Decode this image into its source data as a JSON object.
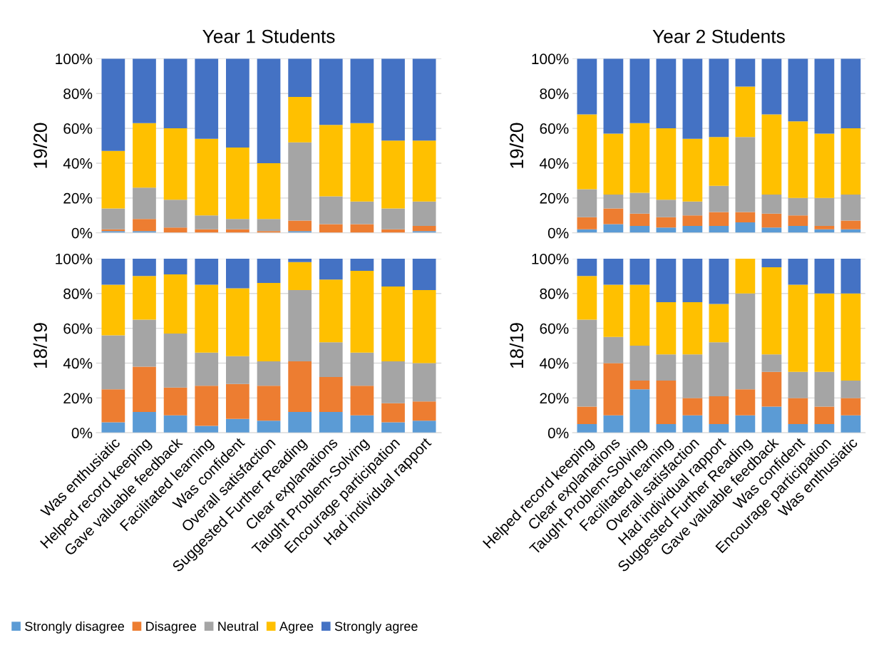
{
  "chart_data": [
    {
      "type": "bar",
      "stacked": true,
      "title": "Year 1 Students",
      "ylabel": "19/20",
      "tick_labels": "y",
      "grid": "y",
      "legend": "bottom",
      "ylim": [
        0,
        100
      ],
      "yticks": [
        {
          "value": 0,
          "label": "0%"
        },
        {
          "value": 20,
          "label": "20%"
        },
        {
          "value": 40,
          "label": "40%"
        },
        {
          "value": 60,
          "label": "60%"
        },
        {
          "value": 80,
          "label": "80%"
        },
        {
          "value": 100,
          "label": "100%"
        }
      ],
      "series": [
        {
          "name": "Strongly disagree",
          "color": "#5b9bd5",
          "values": [
            1,
            1,
            0,
            0,
            0,
            0,
            1,
            0,
            0,
            0,
            1
          ]
        },
        {
          "name": "Disagree",
          "color": "#ed7d31",
          "values": [
            1,
            7,
            3,
            2,
            2,
            1,
            6,
            5,
            5,
            2,
            3
          ]
        },
        {
          "name": "Neutral",
          "color": "#a5a5a5",
          "values": [
            12,
            18,
            16,
            8,
            6,
            7,
            45,
            16,
            13,
            12,
            14
          ]
        },
        {
          "name": "Agree",
          "color": "#ffc000",
          "values": [
            33,
            37,
            41,
            44,
            41,
            32,
            26,
            41,
            45,
            39,
            35
          ]
        },
        {
          "name": "Strongly agree",
          "color": "#4472c4",
          "values": [
            53,
            37,
            40,
            46,
            51,
            60,
            22,
            38,
            37,
            47,
            47
          ]
        }
      ]
    },
    {
      "type": "bar",
      "stacked": true,
      "ylabel": "18/19",
      "grid": "y",
      "categories": [
        "Was enthusiatic",
        "Helped record keeping",
        "Gave valuable feedback",
        "Facilitated learning",
        "Was confident",
        "Overall satisfaction",
        "Suggested Further Reading",
        "Clear explanations",
        "Taught Problem-Solving",
        "Encourage participation",
        "Had individual rapport"
      ],
      "ylim": [
        0,
        100
      ],
      "yticks": [
        {
          "value": 0,
          "label": "0%"
        },
        {
          "value": 20,
          "label": "20%"
        },
        {
          "value": 40,
          "label": "40%"
        },
        {
          "value": 60,
          "label": "60%"
        },
        {
          "value": 80,
          "label": "80%"
        },
        {
          "value": 100,
          "label": "100%"
        }
      ],
      "series": [
        {
          "color": "#5b9bd5",
          "values": [
            6,
            12,
            10,
            4,
            8,
            7,
            12,
            12,
            10,
            6,
            7
          ]
        },
        {
          "color": "#ed7d31",
          "values": [
            19,
            26,
            16,
            23,
            20,
            20,
            29,
            20,
            17,
            11,
            11
          ]
        },
        {
          "color": "#a5a5a5",
          "values": [
            31,
            27,
            31,
            19,
            16,
            14,
            41,
            20,
            19,
            24,
            22
          ]
        },
        {
          "color": "#ffc000",
          "values": [
            29,
            25,
            34,
            39,
            39,
            45,
            16,
            36,
            47,
            43,
            42
          ]
        },
        {
          "color": "#4472c4",
          "values": [
            15,
            10,
            9,
            15,
            17,
            14,
            2,
            12,
            7,
            16,
            18
          ]
        }
      ]
    },
    {
      "type": "bar",
      "stacked": true,
      "title": "Year 2 Students",
      "ylabel": "19/20",
      "tick_labels": "y",
      "grid": "y",
      "ylim": [
        0,
        100
      ],
      "yticks": [
        {
          "value": 0,
          "label": "0%"
        },
        {
          "value": 20,
          "label": "20%"
        },
        {
          "value": 40,
          "label": "40%"
        },
        {
          "value": 60,
          "label": "60%"
        },
        {
          "value": 80,
          "label": "80%"
        },
        {
          "value": 100,
          "label": "100%"
        }
      ],
      "series": [
        {
          "color": "#5b9bd5",
          "values": [
            2,
            5,
            4,
            3,
            4,
            4,
            6,
            3,
            4,
            2,
            2
          ]
        },
        {
          "color": "#ed7d31",
          "values": [
            7,
            9,
            7,
            6,
            6,
            8,
            6,
            8,
            6,
            2,
            5
          ]
        },
        {
          "color": "#a5a5a5",
          "values": [
            16,
            8,
            12,
            10,
            8,
            15,
            43,
            11,
            10,
            16,
            15
          ]
        },
        {
          "color": "#ffc000",
          "values": [
            43,
            35,
            40,
            41,
            36,
            28,
            29,
            46,
            44,
            37,
            38
          ]
        },
        {
          "color": "#4472c4",
          "values": [
            32,
            43,
            37,
            40,
            46,
            45,
            16,
            32,
            36,
            43,
            40
          ]
        }
      ]
    },
    {
      "type": "bar",
      "stacked": true,
      "ylabel": "18/19",
      "grid": "y",
      "categories": [
        "Helped record keeping",
        "Clear explanations",
        "Taught Problem-Solving",
        "Facilitated learning",
        "Overall satisfaction",
        "Had individual rapport",
        "Suggested Further Reading",
        "Gave valuable feedback",
        "Was confident",
        "Encourage participation",
        "Was enthusiatic"
      ],
      "ylim": [
        0,
        100
      ],
      "yticks": [
        {
          "value": 0,
          "label": "0%"
        },
        {
          "value": 20,
          "label": "20%"
        },
        {
          "value": 40,
          "label": "40%"
        },
        {
          "value": 60,
          "label": "60%"
        },
        {
          "value": 80,
          "label": "80%"
        },
        {
          "value": 100,
          "label": "100%"
        }
      ],
      "series": [
        {
          "color": "#5b9bd5",
          "values": [
            5,
            10,
            25,
            5,
            10,
            5,
            10,
            15,
            5,
            5,
            10
          ]
        },
        {
          "color": "#ed7d31",
          "values": [
            10,
            30,
            5,
            25,
            10,
            16,
            15,
            20,
            15,
            10,
            10
          ]
        },
        {
          "color": "#a5a5a5",
          "values": [
            50,
            15,
            20,
            15,
            25,
            31,
            55,
            10,
            15,
            20,
            10
          ]
        },
        {
          "color": "#ffc000",
          "values": [
            25,
            30,
            35,
            30,
            30,
            22,
            20,
            50,
            50,
            45,
            50
          ]
        },
        {
          "color": "#4472c4",
          "values": [
            10,
            15,
            15,
            25,
            25,
            26,
            0,
            5,
            15,
            20,
            20
          ]
        }
      ]
    }
  ]
}
